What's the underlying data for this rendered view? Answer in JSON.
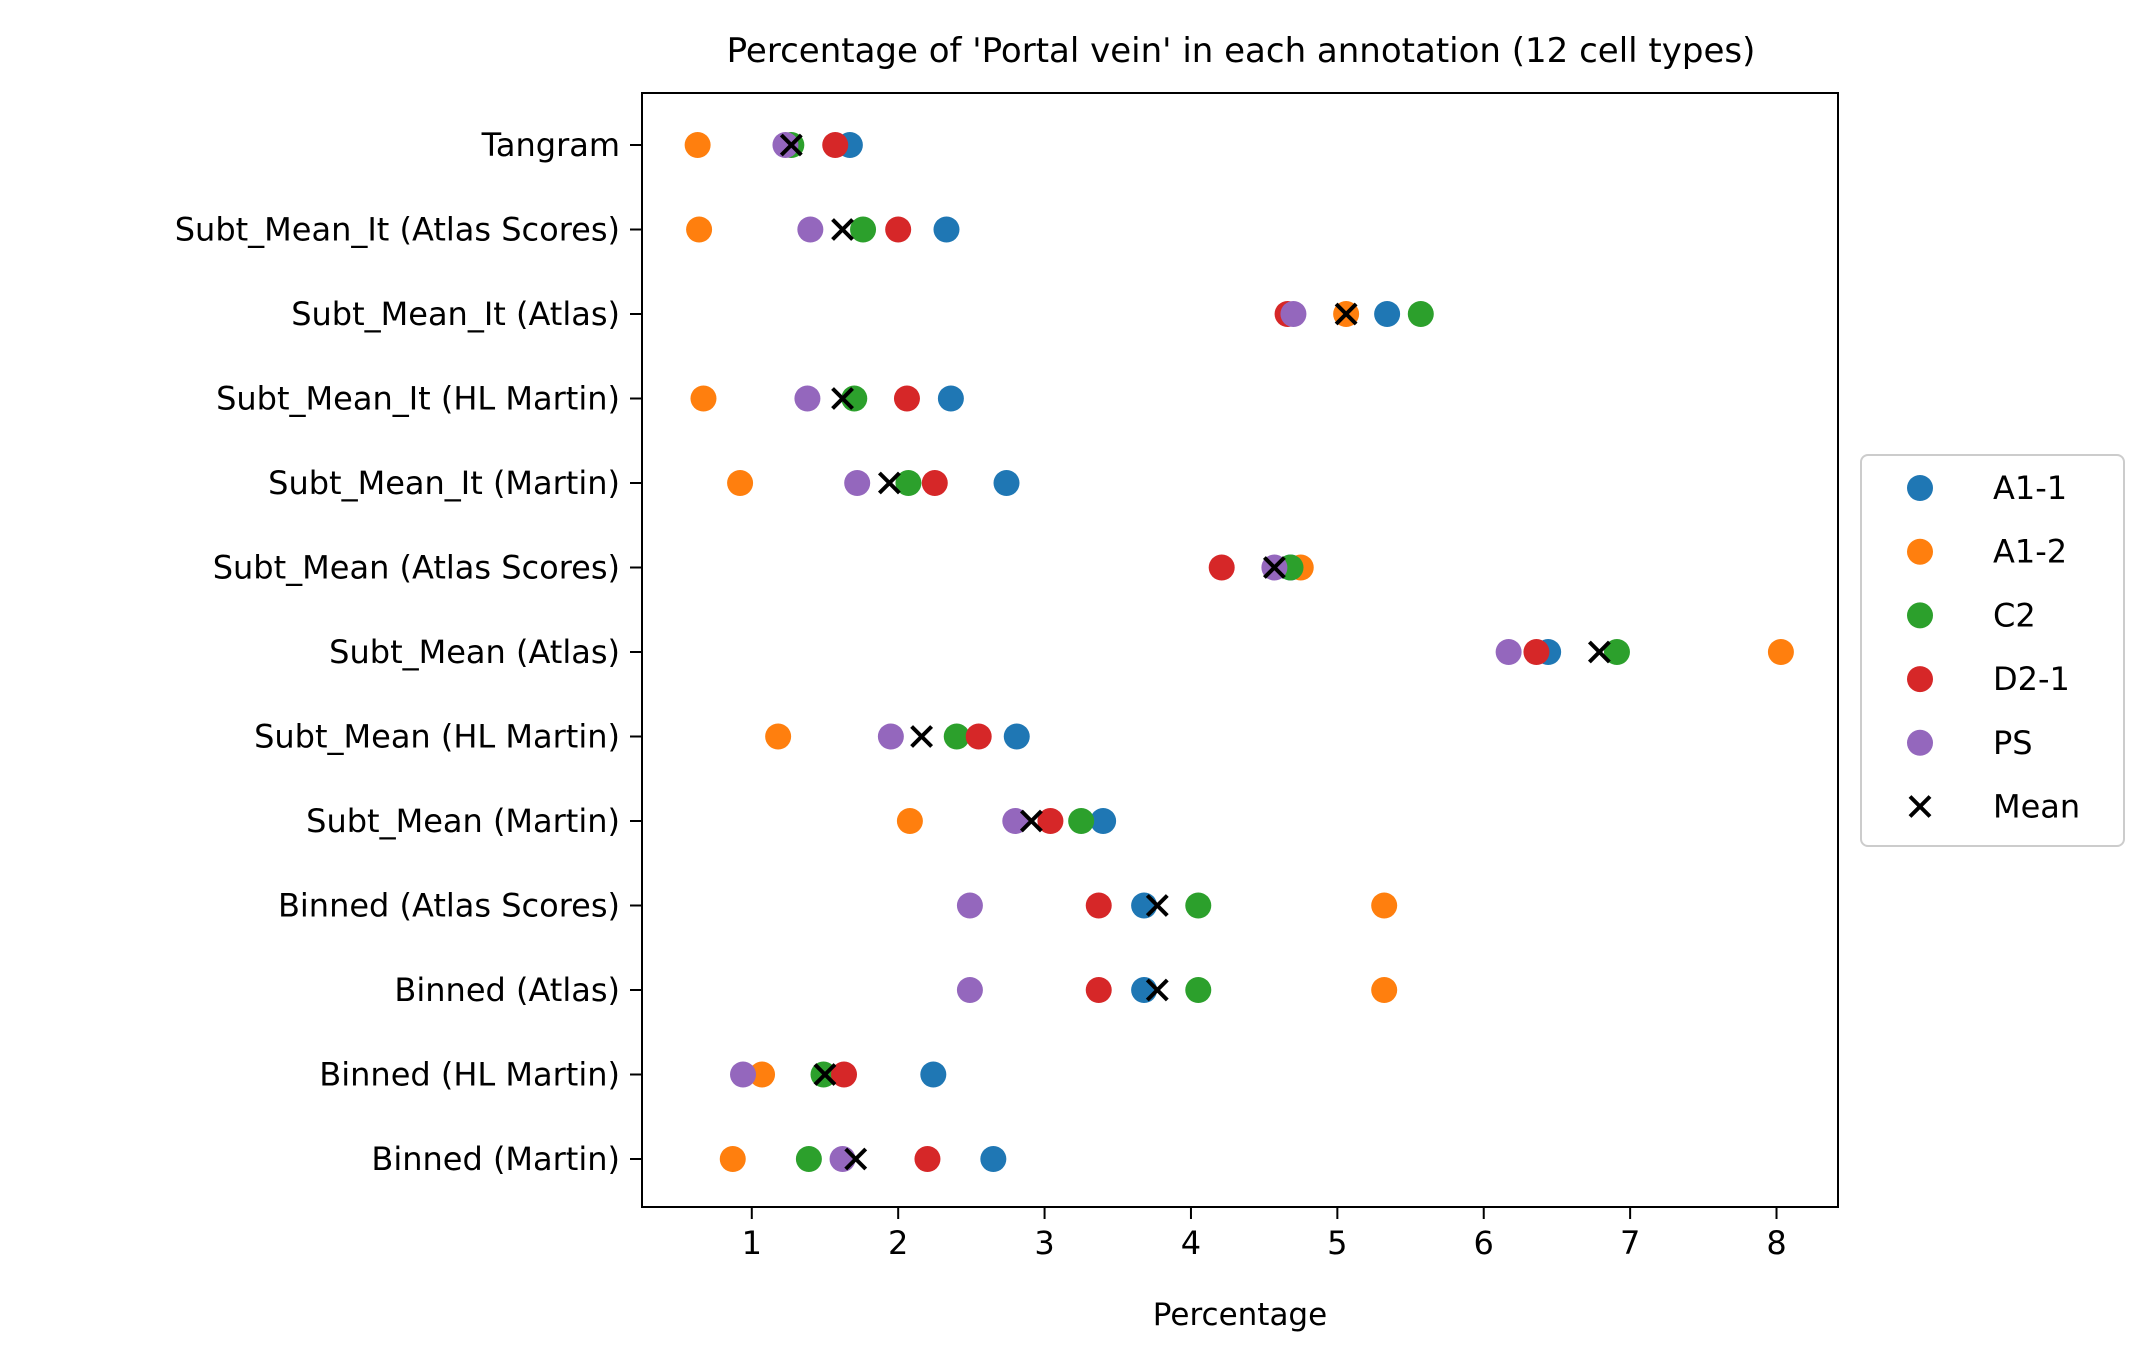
{
  "chart_data": {
    "type": "scatter",
    "title": "Percentage of 'Portal vein' in each annotation (12 cell types)",
    "xlabel": "Percentage",
    "ylabel": "",
    "xlim": [
      0.25,
      8.42
    ],
    "xticks": [
      1,
      2,
      3,
      4,
      5,
      6,
      7,
      8
    ],
    "grid": false,
    "legend_position": "center-right, outside plot",
    "categories": [
      "Tangram",
      "Subt_Mean_It (Atlas Scores)",
      "Subt_Mean_It (Atlas)",
      "Subt_Mean_It (HL Martin)",
      "Subt_Mean_It (Martin)",
      "Subt_Mean (Atlas Scores)",
      "Subt_Mean (Atlas)",
      "Subt_Mean (HL Martin)",
      "Subt_Mean (Martin)",
      "Binned (Atlas Scores)",
      "Binned (Atlas)",
      "Binned (HL Martin)",
      "Binned (Martin)"
    ],
    "series": [
      {
        "name": "A1-1",
        "color": "#1f77b4",
        "marker": "circle",
        "values": [
          1.67,
          2.33,
          5.34,
          2.36,
          2.74,
          4.68,
          6.44,
          2.81,
          3.4,
          3.68,
          3.68,
          2.24,
          2.65
        ]
      },
      {
        "name": "A1-2",
        "color": "#ff7f0e",
        "marker": "circle",
        "values": [
          0.63,
          0.64,
          5.06,
          0.67,
          0.92,
          4.75,
          8.03,
          1.18,
          2.08,
          5.32,
          5.32,
          1.07,
          0.87
        ]
      },
      {
        "name": "C2",
        "color": "#2ca02c",
        "marker": "circle",
        "values": [
          1.27,
          1.76,
          5.57,
          1.7,
          2.07,
          4.68,
          6.91,
          2.4,
          3.25,
          4.05,
          4.05,
          1.49,
          1.39
        ]
      },
      {
        "name": "D2-1",
        "color": "#d62728",
        "marker": "circle",
        "values": [
          1.57,
          2.0,
          4.66,
          2.06,
          2.25,
          4.21,
          6.36,
          2.55,
          3.04,
          3.37,
          3.37,
          1.63,
          2.2
        ]
      },
      {
        "name": "PS",
        "color": "#9467bd",
        "marker": "circle",
        "values": [
          1.23,
          1.4,
          4.7,
          1.38,
          1.72,
          4.57,
          6.17,
          1.95,
          2.8,
          2.49,
          2.49,
          0.94,
          1.62
        ]
      },
      {
        "name": "Mean",
        "color": "#000000",
        "marker": "x",
        "values": [
          1.27,
          1.62,
          5.06,
          1.62,
          1.94,
          4.57,
          6.79,
          2.16,
          2.91,
          3.77,
          3.77,
          1.5,
          1.71
        ]
      }
    ]
  }
}
